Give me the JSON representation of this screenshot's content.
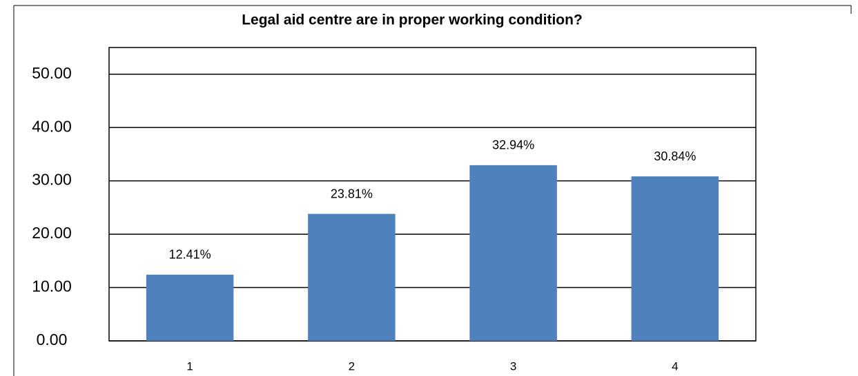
{
  "chart_data": {
    "type": "bar",
    "title": "Legal aid centre are in proper working condition?",
    "categories": [
      "1",
      "2",
      "3",
      "4"
    ],
    "values": [
      12.41,
      23.81,
      32.94,
      30.84
    ],
    "value_labels": [
      "12.41%",
      "23.81%",
      "32.94%",
      "30.84%"
    ],
    "color": "#4f81bd",
    "ylim": [
      0,
      55
    ],
    "yticks": [
      {
        "value": 0,
        "label": "0.00"
      },
      {
        "value": 10,
        "label": "10.00"
      },
      {
        "value": 20,
        "label": "20.00"
      },
      {
        "value": 30,
        "label": "30.00"
      },
      {
        "value": 40,
        "label": "40.00"
      },
      {
        "value": 50,
        "label": "50.00"
      }
    ],
    "grid": true
  }
}
